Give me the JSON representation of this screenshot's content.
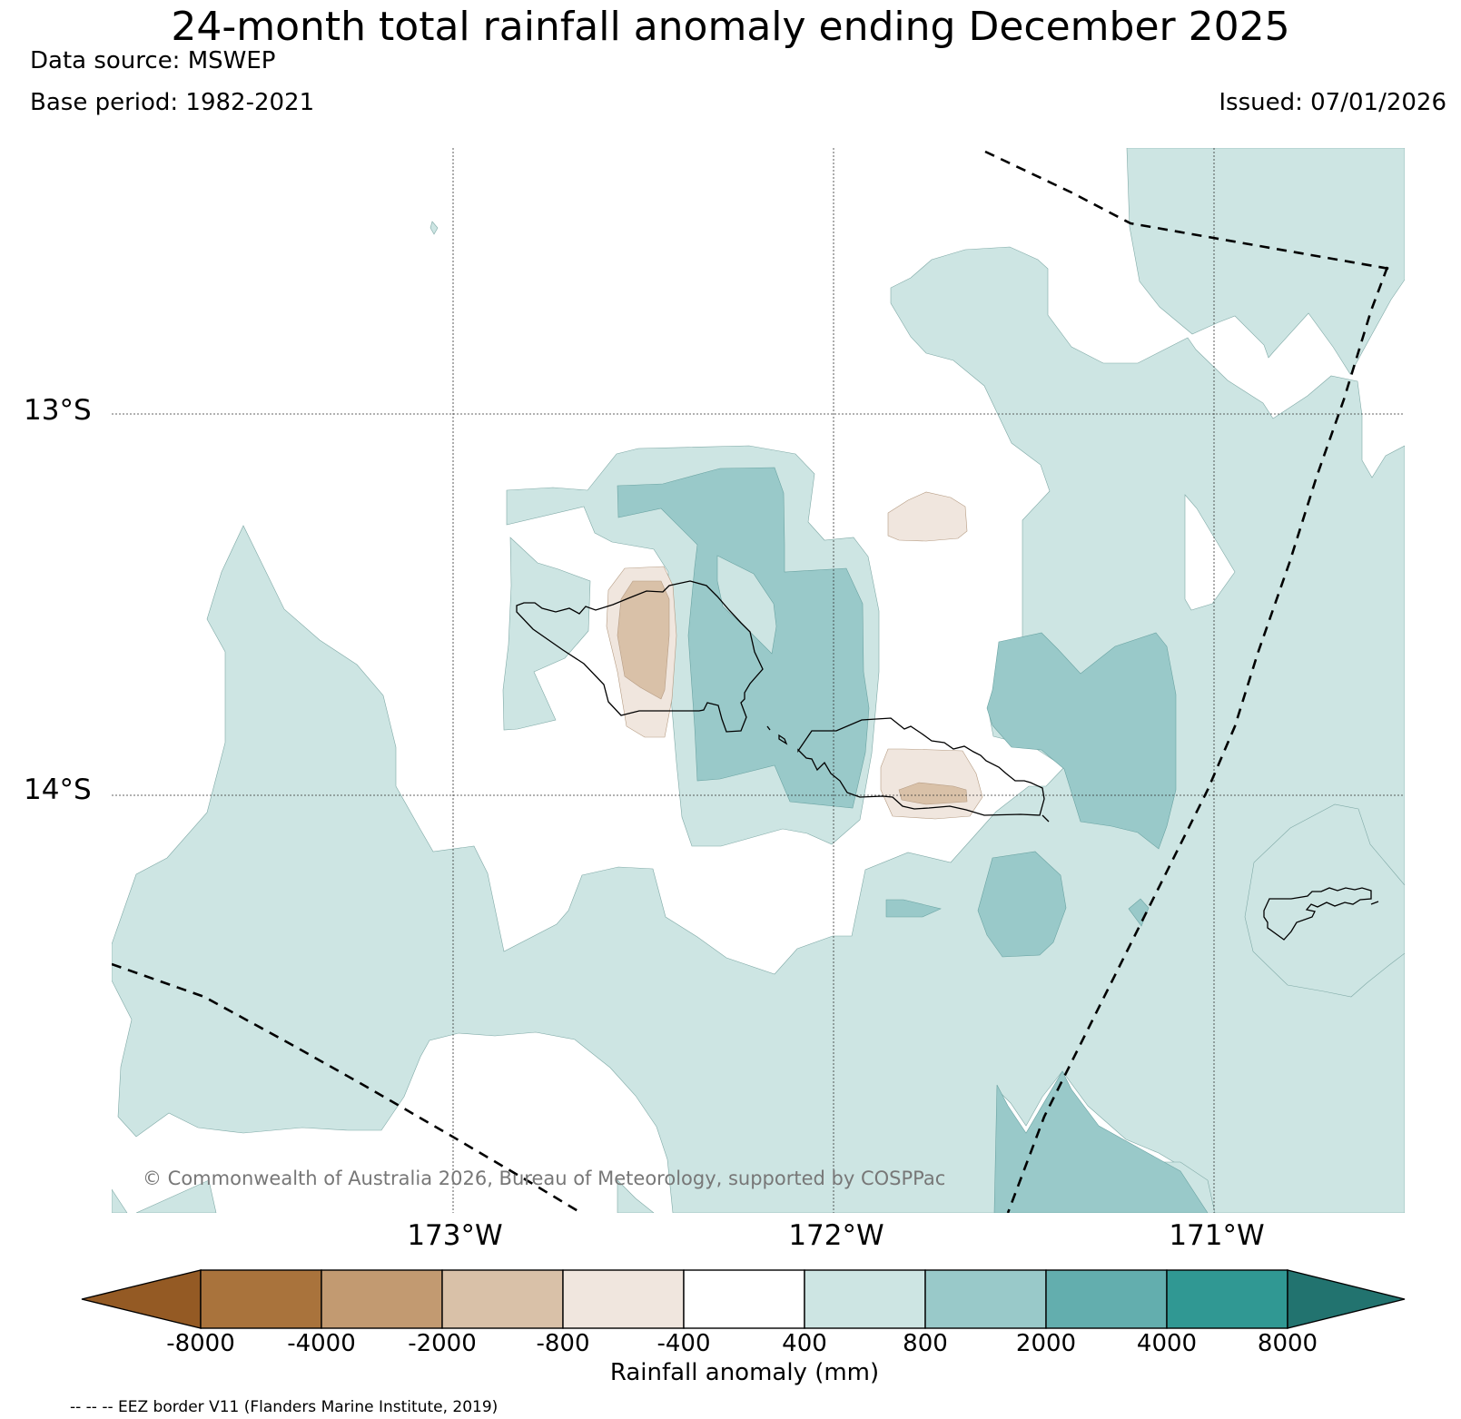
{
  "title": "24-month total rainfall anomaly ending December 2025",
  "data_source": "Data source: MSWEP",
  "base_period": "Base period: 1982-2021",
  "issued": "Issued: 07/01/2026",
  "latitudes": [
    "13°S",
    "14°S"
  ],
  "longitudes": [
    "173°W",
    "172°W",
    "171°W"
  ],
  "copyright": "© Commonwealth of Australia 2026, Bureau of Meteorology, supported by COSPPac",
  "colorbar": {
    "label": "Rainfall anomaly (mm)",
    "ticks": [
      "-8000",
      "-4000",
      "-2000",
      "-800",
      "-400",
      "400",
      "800",
      "2000",
      "4000",
      "8000"
    ],
    "colors": [
      "#945a24",
      "#a9733c",
      "#c29a71",
      "#d9c1a8",
      "#f0e6de",
      "#ffffff",
      "#cde5e3",
      "#99c9c9",
      "#63aeae",
      "#309893",
      "#22736f"
    ]
  },
  "legend_note": "-- -- -- EEZ border V11 (Flanders Marine Institute, 2019)",
  "map_colors": {
    "pos_400_800": "#cde5e3",
    "pos_800_2000": "#99c9c9",
    "neg_400_800": "#f0e6de",
    "neg_800_2000": "#d9c1a8",
    "neg_2000_4000": "#c29a71"
  }
}
